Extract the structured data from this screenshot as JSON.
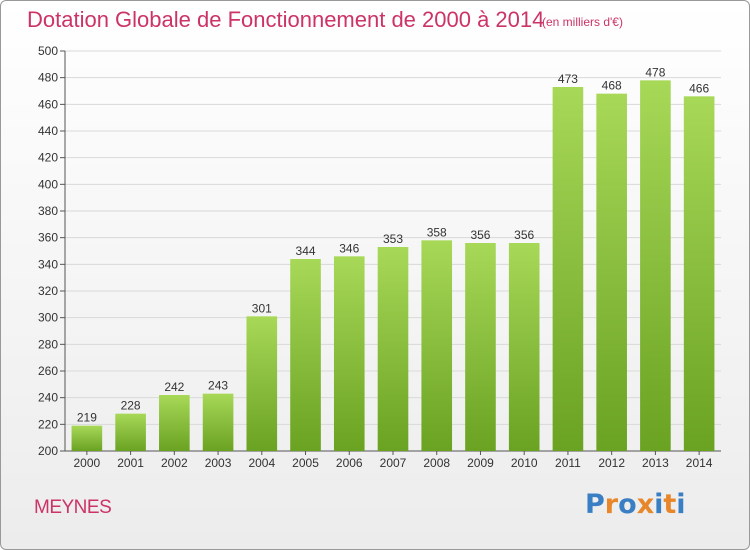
{
  "header": {
    "title": "Dotation Globale de Fonctionnement de 2000 à 2014",
    "unit": "(en milliers d'€)"
  },
  "commune": "MEYNES",
  "logo": {
    "text": "Proxiti",
    "colors": [
      "#3a7fc4",
      "#e8862a",
      "#3a7fc4",
      "#e8862a",
      "#3a7fc4",
      "#e8862a",
      "#3a7fc4"
    ]
  },
  "colors": {
    "accent": "#cc3366",
    "bar_light": "#a8d858",
    "bar_dark": "#6aa222",
    "grid": "#d9d9d9"
  },
  "chart_data": {
    "type": "bar",
    "title": "Dotation Globale de Fonctionnement de 2000 à 2014",
    "subtitle": "(en milliers d'€)",
    "categories": [
      "2000",
      "2001",
      "2002",
      "2003",
      "2004",
      "2005",
      "2006",
      "2007",
      "2008",
      "2009",
      "2010",
      "2011",
      "2012",
      "2013",
      "2014"
    ],
    "values": [
      219,
      228,
      242,
      243,
      301,
      344,
      346,
      353,
      358,
      356,
      356,
      473,
      468,
      478,
      466
    ],
    "ylim": [
      200,
      500
    ],
    "yticks": [
      200,
      220,
      240,
      260,
      280,
      300,
      320,
      340,
      360,
      380,
      400,
      420,
      440,
      460,
      480,
      500
    ],
    "grid": true,
    "data_labels": true
  }
}
